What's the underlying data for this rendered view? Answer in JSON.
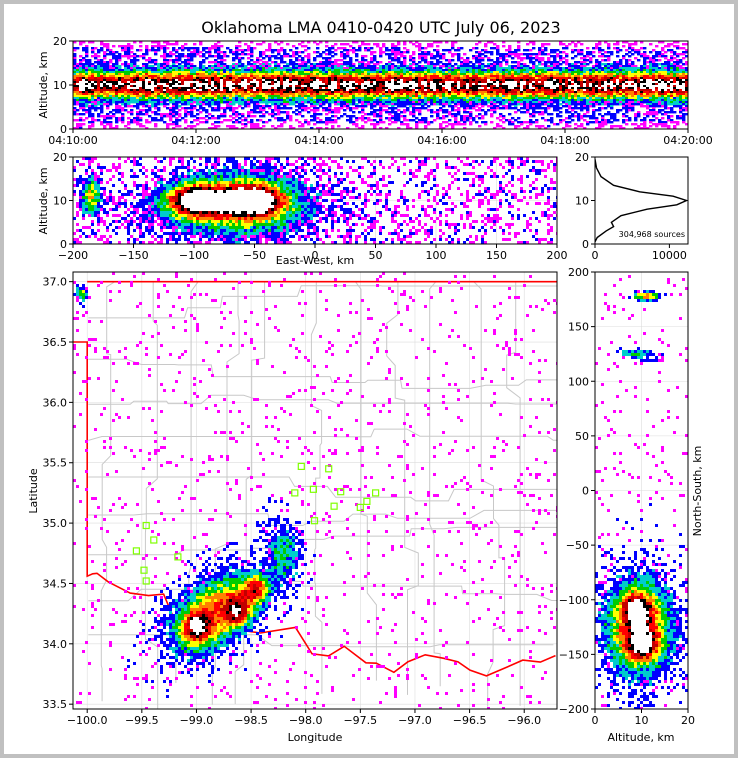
{
  "colors": {
    "background": "#ffffff",
    "frame": "#c0c0c0",
    "grid": "#dcdcdc",
    "county_lines": "#c8c8c8",
    "state_border": "#ff0000",
    "stations": "#7fff00",
    "density_scale": [
      "#ff00ff",
      "#0000ff",
      "#00cccc",
      "#00cc00",
      "#ffff00",
      "#ff8000",
      "#ff0000",
      "#c00000",
      "#000000",
      "#ffffff"
    ]
  },
  "chart_data": [
    {
      "id": "time_height",
      "type": "heatmap",
      "title": "Oklahoma LMA 0410-0420 UTC July 06, 2023",
      "xlabel": "",
      "ylabel": "Altitude, km",
      "xticks": [
        "04:10:00",
        "04:12:00",
        "04:14:00",
        "04:16:00",
        "04:18:00",
        "04:20:00"
      ],
      "yticks": [
        "0",
        "10",
        "20"
      ],
      "xlim": [
        "04:10:00",
        "04:20:00"
      ],
      "ylim": [
        0,
        20
      ],
      "peak_altitude_km": 10
    },
    {
      "id": "east_west_altitude",
      "type": "heatmap",
      "xlabel": "East-West, km",
      "ylabel": "Altitude, km",
      "xticks": [
        "−200",
        "−150",
        "−100",
        "−50",
        "0",
        "50",
        "100",
        "150",
        "200"
      ],
      "yticks": [
        "0",
        "10",
        "20"
      ],
      "xlim": [
        -200,
        200
      ],
      "ylim": [
        0,
        20
      ],
      "cores": [
        {
          "x": -97,
          "altitude": 10
        },
        {
          "x": -52,
          "altitude": 10
        }
      ]
    },
    {
      "id": "altitude_histogram",
      "type": "line",
      "xticks": [
        "0",
        "10000"
      ],
      "yticks": [
        "0",
        "10",
        "20"
      ],
      "xlim": [
        0,
        12500
      ],
      "ylim": [
        0,
        20
      ],
      "annotation": "304,968 sources",
      "x": [
        0,
        300,
        1500,
        2500,
        2200,
        3500,
        7000,
        11000,
        12300,
        10500,
        6000,
        2500,
        800,
        200,
        0
      ],
      "y": [
        0.5,
        1.5,
        3.0,
        4.0,
        5.0,
        6.5,
        8.0,
        9.0,
        10.0,
        11.0,
        12.0,
        13.5,
        15.5,
        17.5,
        19.5
      ]
    },
    {
      "id": "plan_view",
      "type": "scatter",
      "xlabel": "Longitude",
      "ylabel": "Latitude",
      "xticks": [
        "−100.0",
        "−99.5",
        "−99.0",
        "−98.5",
        "−98.0",
        "−97.5",
        "−97.0",
        "−96.5",
        "−96.0"
      ],
      "yticks": [
        "33.5",
        "34.0",
        "34.5",
        "35.0",
        "35.5",
        "36.0",
        "36.5",
        "37.0"
      ],
      "xlim": [
        -100.13,
        -95.7
      ],
      "ylim": [
        33.46,
        37.08
      ],
      "stations": [
        {
          "lon": -98.04,
          "lat": 35.47
        },
        {
          "lon": -97.79,
          "lat": 35.45
        },
        {
          "lon": -98.1,
          "lat": 35.25
        },
        {
          "lon": -97.93,
          "lat": 35.28
        },
        {
          "lon": -97.68,
          "lat": 35.26
        },
        {
          "lon": -97.36,
          "lat": 35.25
        },
        {
          "lon": -97.44,
          "lat": 35.18
        },
        {
          "lon": -97.74,
          "lat": 35.14
        },
        {
          "lon": -97.5,
          "lat": 35.13
        },
        {
          "lon": -97.92,
          "lat": 35.02
        },
        {
          "lon": -99.46,
          "lat": 34.98
        },
        {
          "lon": -99.39,
          "lat": 34.86
        },
        {
          "lon": -99.55,
          "lat": 34.77
        },
        {
          "lon": -99.17,
          "lat": 34.72
        },
        {
          "lon": -99.48,
          "lat": 34.61
        },
        {
          "lon": -99.46,
          "lat": 34.52
        }
      ],
      "storm_cores": [
        {
          "lon": -99.0,
          "lat": 34.13
        },
        {
          "lon": -98.62,
          "lat": 34.27
        },
        {
          "lon": -98.46,
          "lat": 34.45
        }
      ]
    },
    {
      "id": "north_south_altitude",
      "type": "heatmap",
      "xlabel": "Altitude, km",
      "ylabel": "North-South, km",
      "xticks": [
        "0",
        "10",
        "20"
      ],
      "yticks": [
        "200",
        "150",
        "100",
        "50",
        "0",
        "−50",
        "−100",
        "−150",
        "−200"
      ],
      "xlim": [
        0,
        20
      ],
      "ylim": [
        -200,
        200
      ],
      "cores": [
        {
          "altitude": 9,
          "y": -110
        },
        {
          "altitude": 10,
          "y": -140
        }
      ]
    }
  ]
}
